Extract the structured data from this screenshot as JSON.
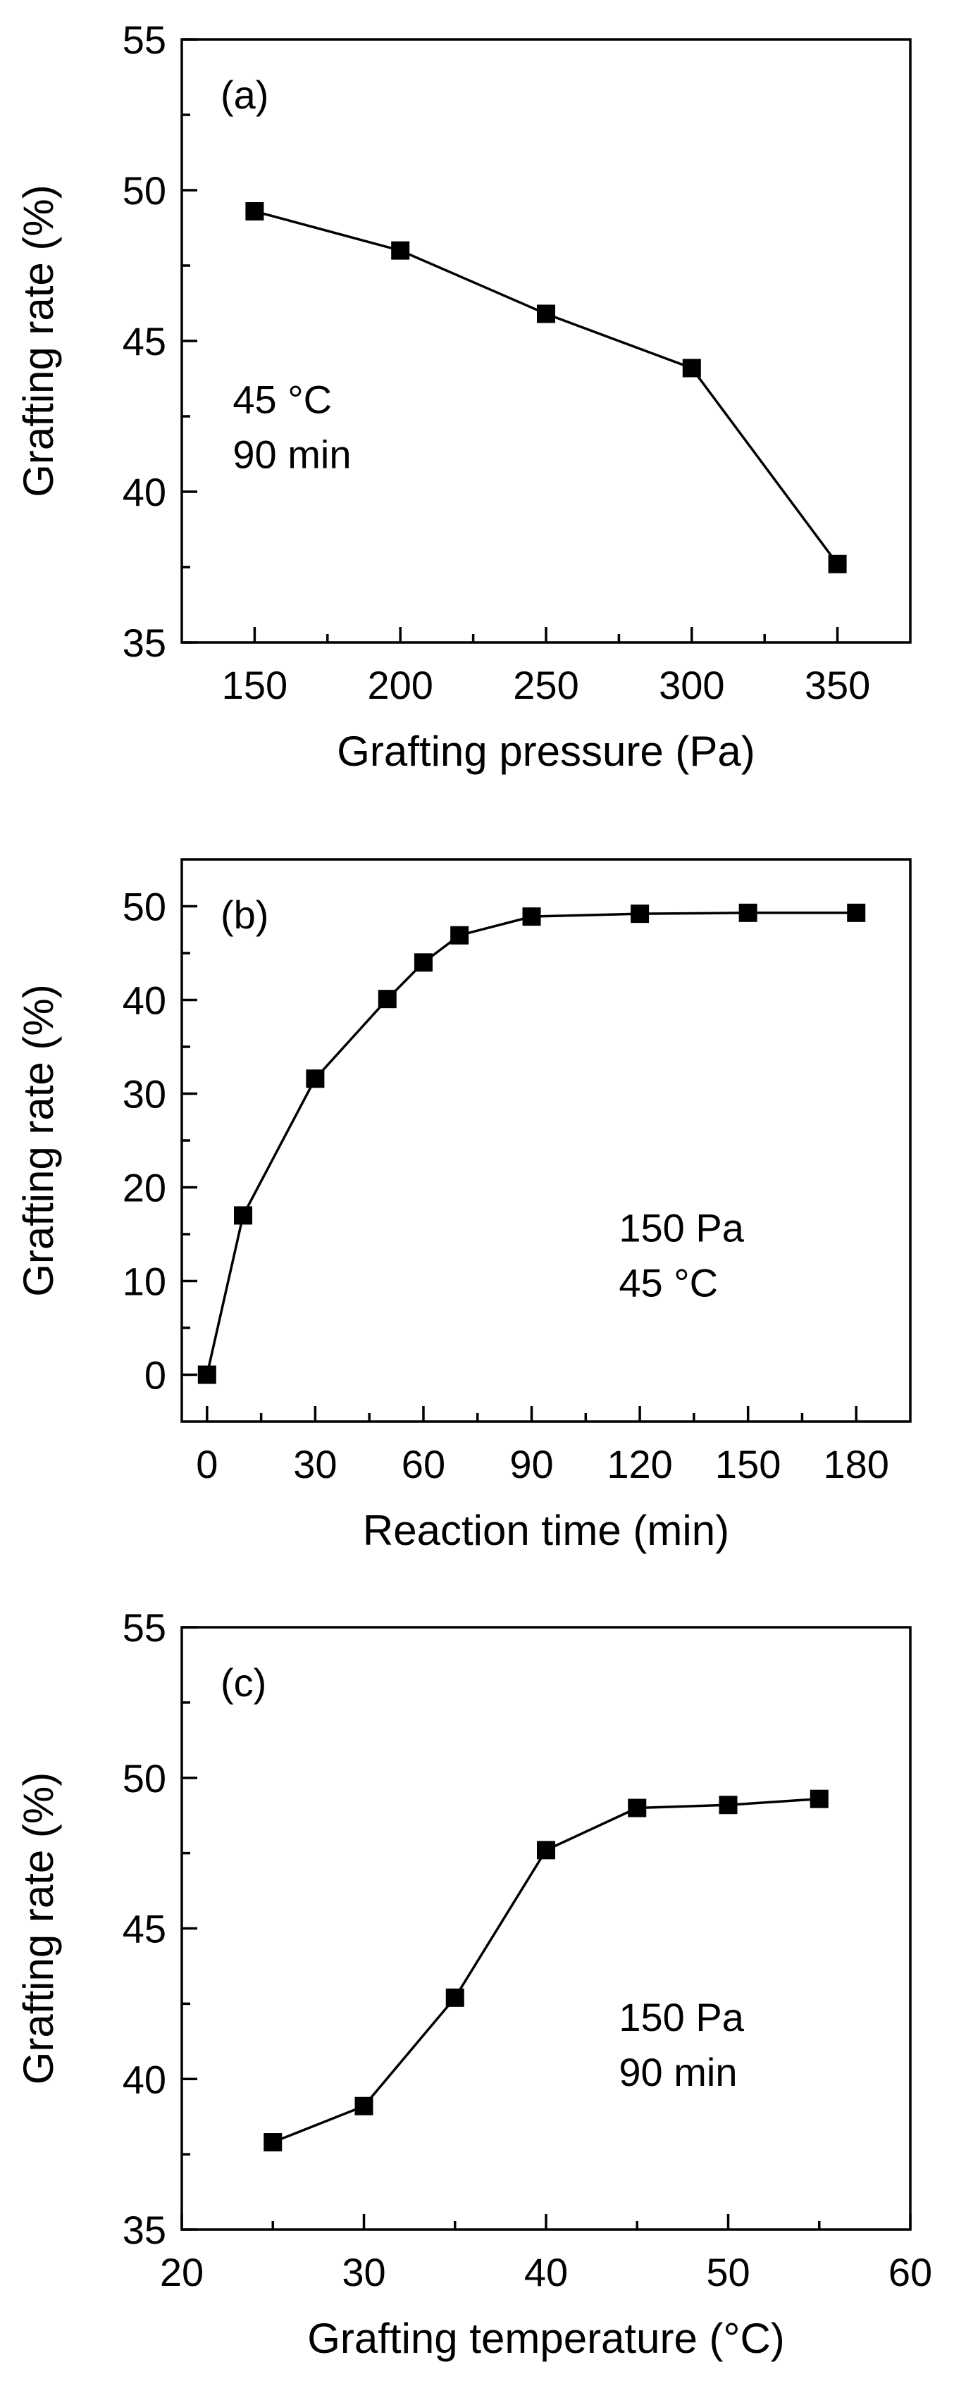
{
  "chart_data": [
    {
      "type": "line",
      "panel_label": "(a)",
      "xlabel": "Grafting pressure (Pa)",
      "ylabel": "Grafting rate (%)",
      "xlim": [
        125,
        375
      ],
      "ylim": [
        35,
        55
      ],
      "xticks": [
        150,
        200,
        250,
        300,
        350
      ],
      "yticks": [
        35,
        40,
        45,
        50,
        55
      ],
      "annotation": [
        "45 °C",
        "90 min"
      ],
      "grid": false,
      "series": [
        {
          "x": [
            150,
            200,
            250,
            300,
            350
          ],
          "y": [
            49.3,
            48.0,
            45.9,
            44.1,
            37.6
          ]
        }
      ]
    },
    {
      "type": "line",
      "panel_label": "(b)",
      "xlabel": "Reaction time (min)",
      "ylabel": "Grafting rate (%)",
      "xlim": [
        -7,
        195
      ],
      "ylim": [
        -5,
        55
      ],
      "xticks": [
        0,
        30,
        60,
        90,
        120,
        150,
        180
      ],
      "yticks": [
        0,
        10,
        20,
        30,
        40,
        50
      ],
      "annotation": [
        "150 Pa",
        "45 °C"
      ],
      "grid": false,
      "series": [
        {
          "x": [
            0,
            10,
            30,
            50,
            60,
            70,
            90,
            120,
            150,
            180
          ],
          "y": [
            0,
            17.0,
            31.6,
            40.1,
            44.0,
            46.9,
            48.9,
            49.2,
            49.3,
            49.3
          ]
        }
      ]
    },
    {
      "type": "line",
      "panel_label": "(c)",
      "xlabel": "Grafting temperature (°C)",
      "ylabel": "Grafting rate (%)",
      "xlim": [
        20,
        60
      ],
      "ylim": [
        35,
        55
      ],
      "xticks": [
        20,
        30,
        40,
        50,
        60
      ],
      "yticks": [
        35,
        40,
        45,
        50,
        55
      ],
      "annotation": [
        "150 Pa",
        "90 min"
      ],
      "grid": false,
      "series": [
        {
          "x": [
            25,
            30,
            35,
            40,
            45,
            50,
            55
          ],
          "y": [
            37.9,
            39.1,
            42.7,
            47.6,
            49.0,
            49.1,
            49.3
          ]
        }
      ]
    }
  ]
}
